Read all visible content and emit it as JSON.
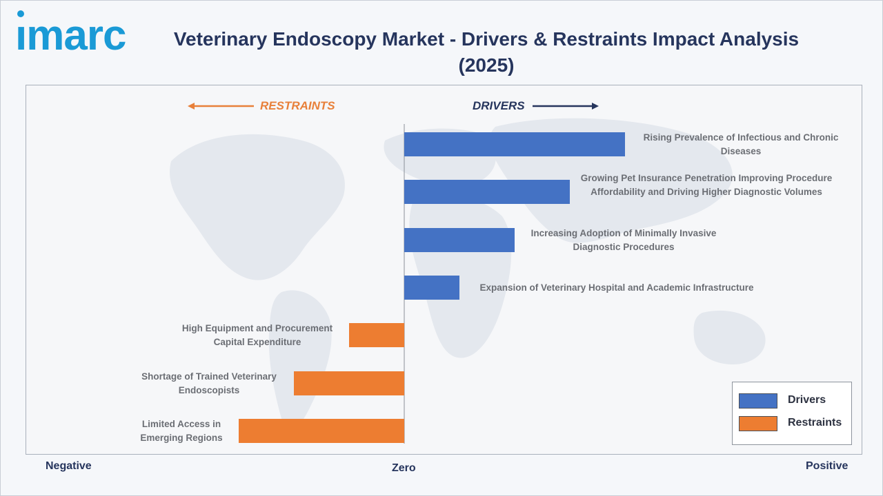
{
  "brand": {
    "name": "imarc",
    "color": "#1a9ad6"
  },
  "title": "Veterinary Endoscopy Market - Drivers & Restraints Impact Analysis (2025)",
  "headers": {
    "restraints": "RESTRAINTS",
    "drivers": "DRIVERS"
  },
  "axis": {
    "negative": "Negative",
    "zero": "Zero",
    "positive": "Positive"
  },
  "colors": {
    "drivers": "#4472c4",
    "restraints": "#ed7d31",
    "title": "#26355d"
  },
  "legend": [
    {
      "label": "Drivers",
      "color": "#4472c4"
    },
    {
      "label": "Restraints",
      "color": "#ed7d31"
    }
  ],
  "chart_data": {
    "type": "bar",
    "orientation": "horizontal-diverging",
    "title": "Veterinary Endoscopy Market - Drivers & Restraints Impact Analysis (2025)",
    "xlim": [
      -4,
      4
    ],
    "categories": [
      "Rising Prevalence of Infectious and Chronic Diseases",
      "Growing Pet Insurance Penetration Improving Procedure Affordability and Driving Higher Diagnostic Volumes",
      "Increasing Adoption of Minimally Invasive Diagnostic Procedures",
      "Expansion of Veterinary Hospital and Academic Infrastructure",
      "High Equipment and Procurement Capital Expenditure",
      "Shortage of Trained Veterinary Endoscopists",
      "Limited Access in Emerging Regions"
    ],
    "series": [
      {
        "name": "Drivers",
        "values": [
          4,
          3,
          2,
          1,
          null,
          null,
          null
        ]
      },
      {
        "name": "Restraints",
        "values": [
          null,
          null,
          null,
          null,
          -1,
          -2,
          -3
        ]
      }
    ],
    "legend_position": "bottom-right"
  }
}
